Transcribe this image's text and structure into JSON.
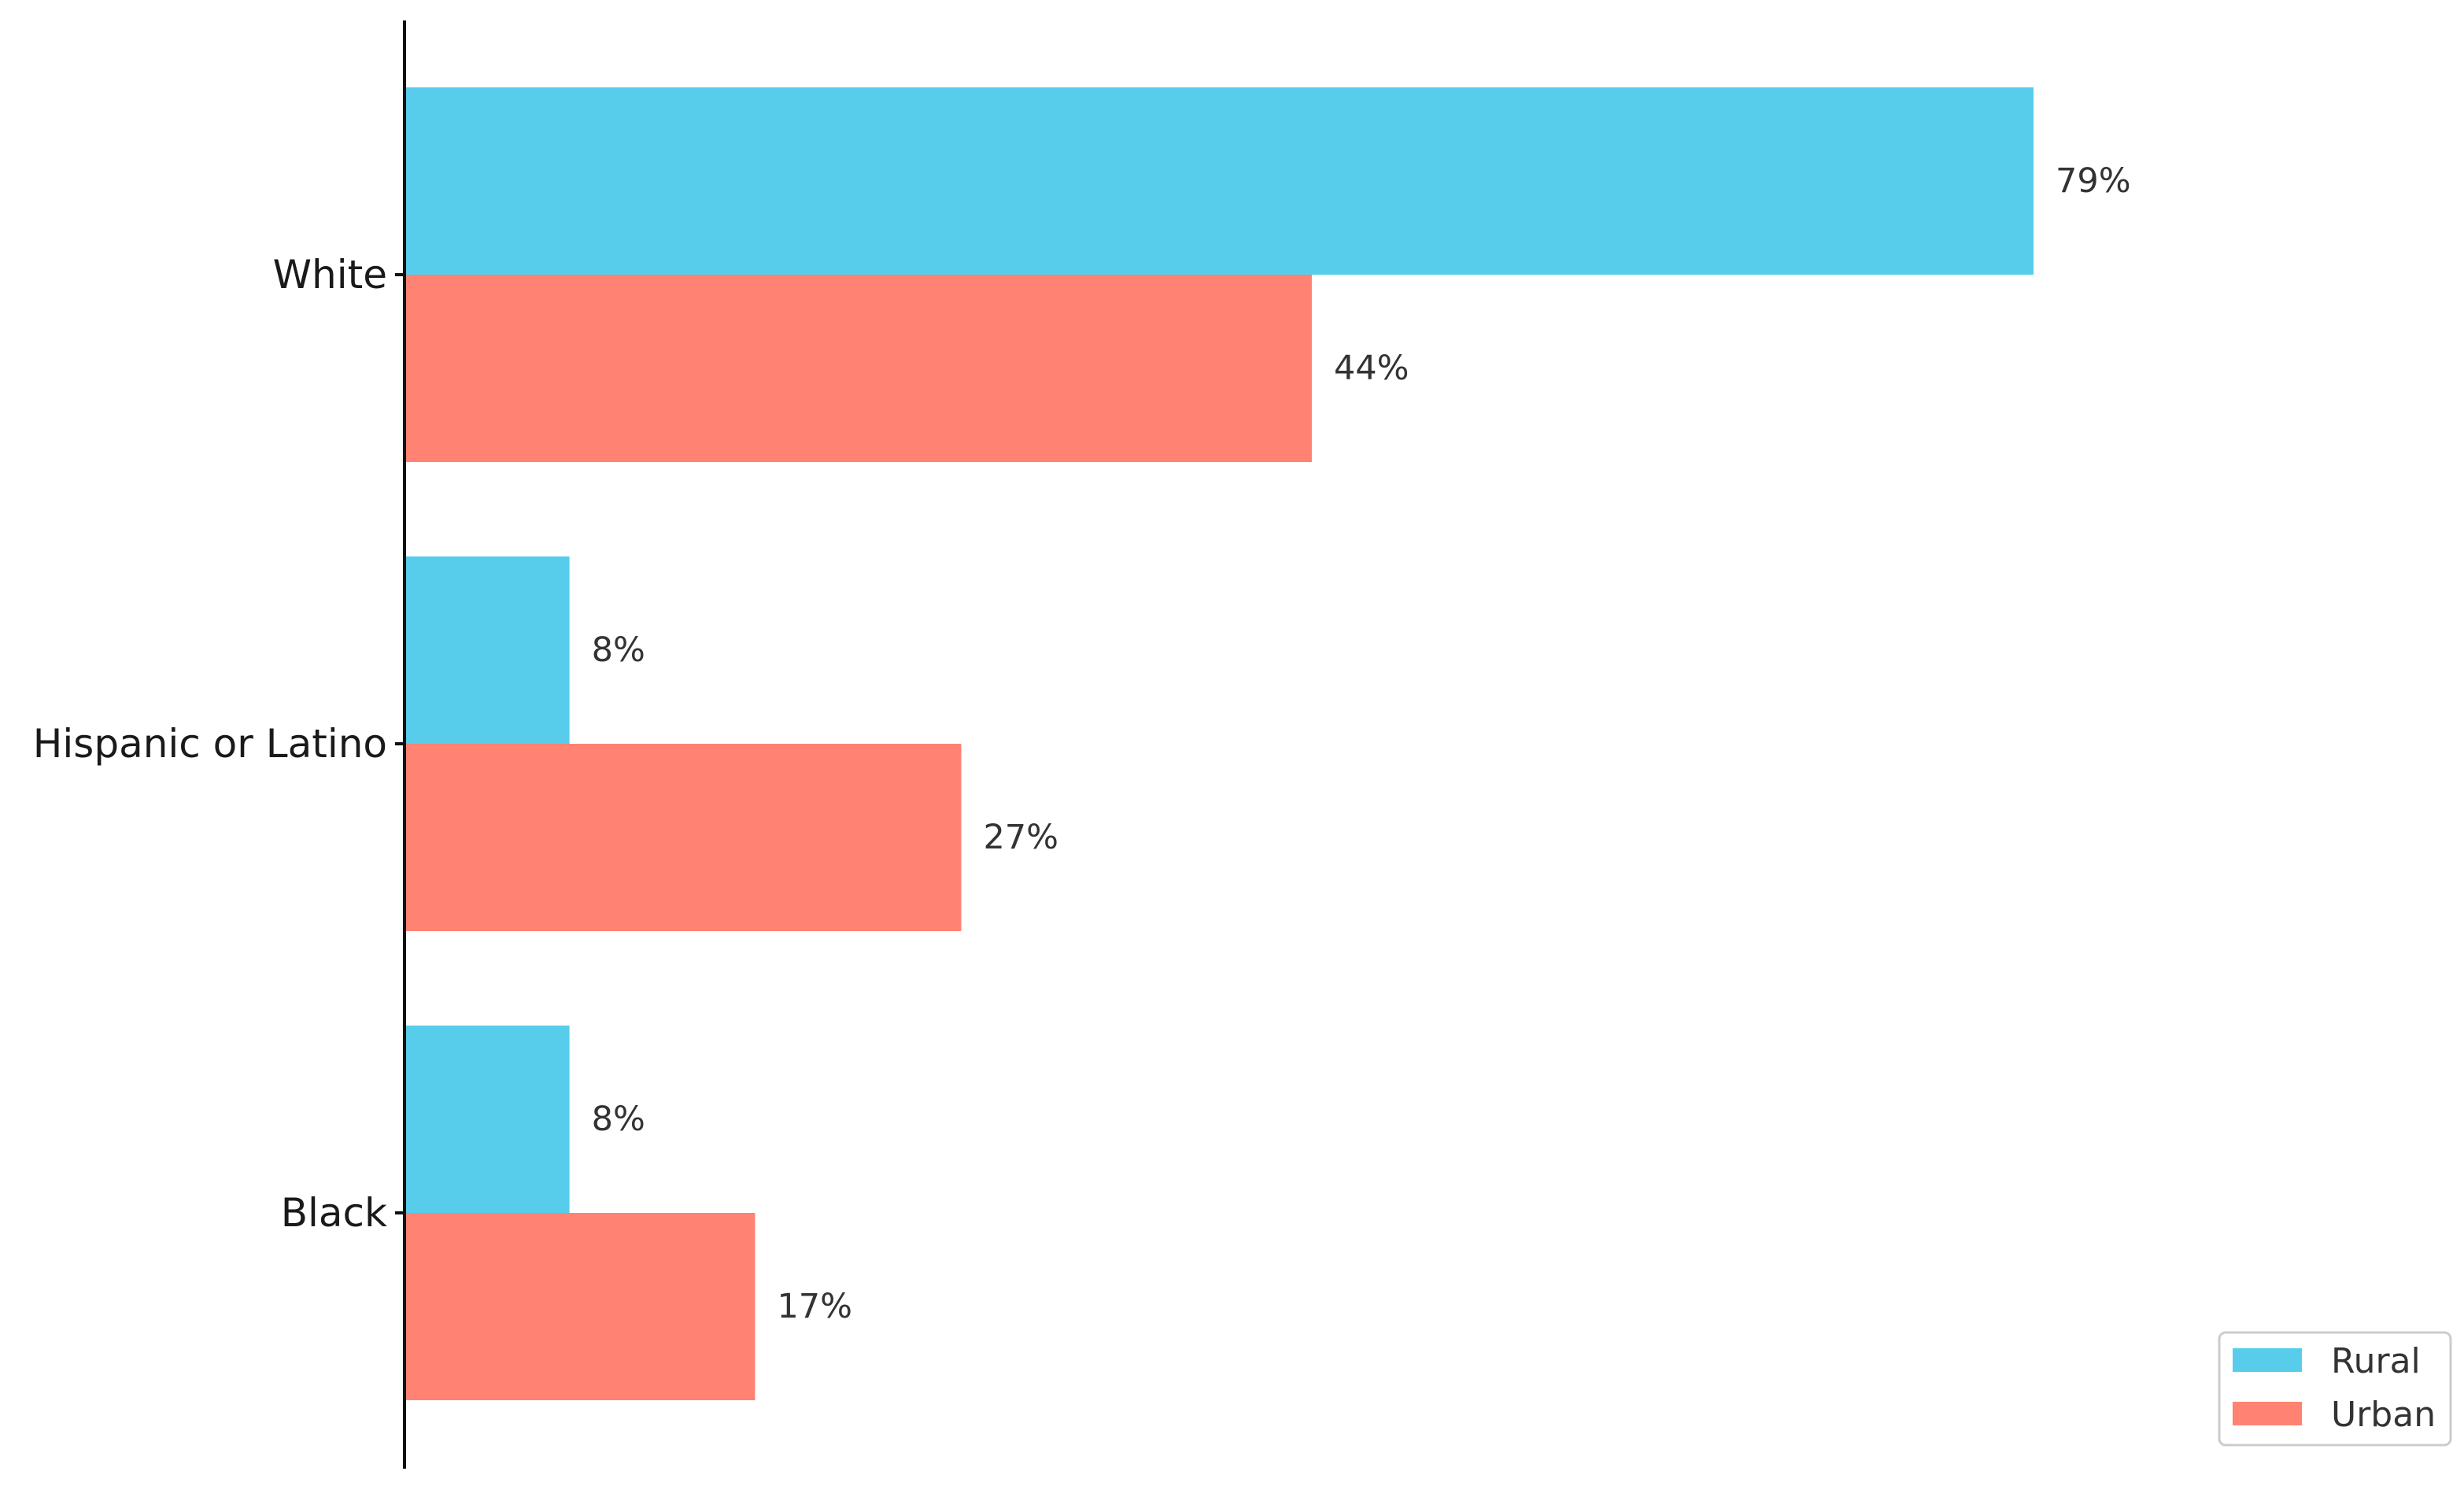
{
  "chart_data": {
    "type": "bar",
    "orientation": "horizontal",
    "title": "",
    "xlabel": "",
    "ylabel": "",
    "categories": [
      "White",
      "Hispanic or Latino",
      "Black"
    ],
    "series": [
      {
        "name": "Rural",
        "color": "#57CDEB",
        "values": [
          79,
          8,
          8
        ]
      },
      {
        "name": "Urban",
        "color": "#FF8272",
        "values": [
          44,
          27,
          17
        ]
      }
    ],
    "value_suffix": "%",
    "xlim": [
      0,
      79
    ],
    "grid": false,
    "legend": {
      "position": "bottom-right"
    }
  }
}
